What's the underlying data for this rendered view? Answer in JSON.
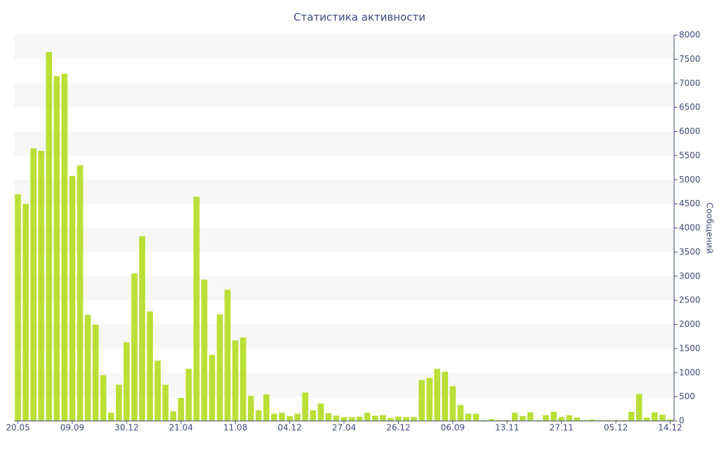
{
  "chart_data": {
    "type": "bar",
    "title": "Статистика активности",
    "y_label": "Сообщений",
    "categories": [
      "20.05",
      null,
      null,
      null,
      null,
      null,
      null,
      "09.09",
      null,
      null,
      null,
      null,
      null,
      null,
      "30.12",
      null,
      null,
      null,
      null,
      null,
      null,
      "21.04",
      null,
      null,
      null,
      null,
      null,
      null,
      "11.08",
      null,
      null,
      null,
      null,
      null,
      null,
      "04.12",
      null,
      null,
      null,
      null,
      null,
      null,
      "27.04",
      null,
      null,
      null,
      null,
      null,
      null,
      "26.12",
      null,
      null,
      null,
      null,
      null,
      null,
      "06.09",
      null,
      null,
      null,
      null,
      null,
      null,
      "13.11",
      null,
      null,
      null,
      null,
      null,
      null,
      "27.11",
      null,
      null,
      null,
      null,
      null,
      null,
      "05.12",
      null,
      null,
      null,
      null,
      null,
      null,
      "14.12"
    ],
    "values": [
      4700,
      4500,
      5650,
      5600,
      7650,
      7150,
      7200,
      5080,
      5300,
      2200,
      2000,
      950,
      170,
      750,
      1630,
      3060,
      3830,
      2270,
      1250,
      750,
      200,
      480,
      1080,
      4650,
      2930,
      1370,
      2210,
      2720,
      1670,
      1730,
      520,
      220,
      550,
      150,
      170,
      100,
      150,
      590,
      220,
      360,
      160,
      110,
      80,
      80,
      90,
      170,
      110,
      120,
      60,
      90,
      80,
      80,
      850,
      890,
      1080,
      1020,
      720,
      330,
      150,
      150,
      20,
      40,
      20,
      20,
      170,
      100,
      180,
      20,
      120,
      190,
      80,
      120,
      70,
      20,
      30,
      20,
      20,
      20,
      20,
      190,
      560,
      70,
      180,
      130,
      30
    ],
    "color": "#b9e036",
    "ylim": [
      0,
      8000
    ],
    "yticks": [
      0,
      500,
      1000,
      1500,
      2000,
      2500,
      3000,
      3500,
      4000,
      4500,
      5000,
      5500,
      6000,
      6500,
      7000,
      7500,
      8000
    ],
    "grid": true
  }
}
